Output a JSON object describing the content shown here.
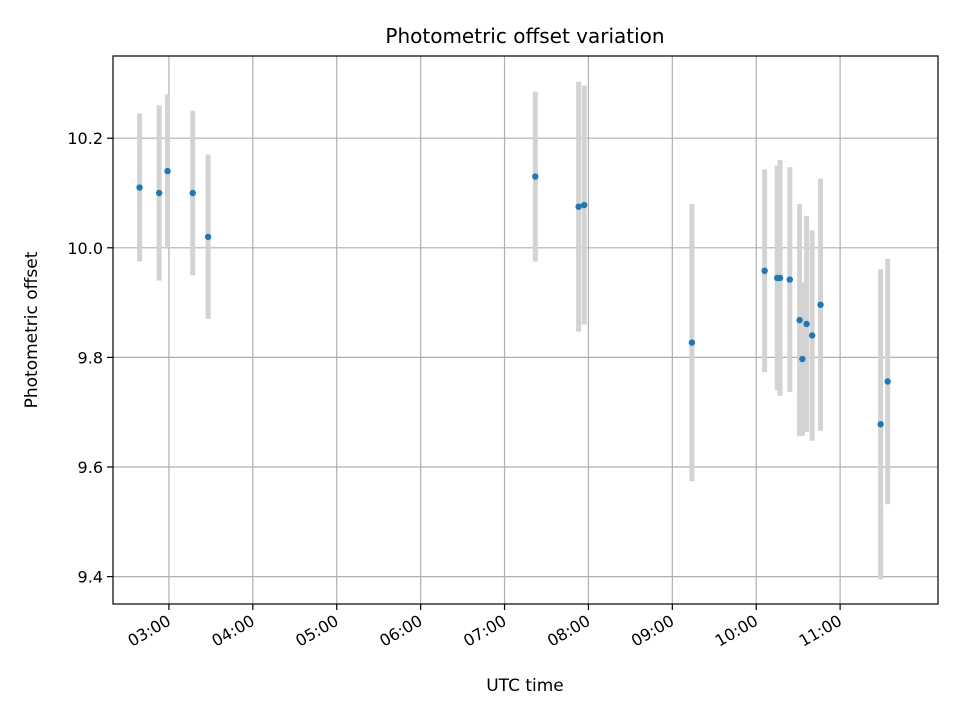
{
  "chart_data": {
    "type": "scatter",
    "title": "Photometric offset variation",
    "xlabel": "UTC time",
    "ylabel": "Photometric offset",
    "xlim": [
      "02:20",
      "12:10"
    ],
    "ylim": [
      9.35,
      10.35
    ],
    "x_ticks": [
      "03:00",
      "04:00",
      "05:00",
      "06:00",
      "07:00",
      "08:00",
      "09:00",
      "10:00",
      "11:00"
    ],
    "y_ticks": [
      9.4,
      9.6,
      9.8,
      10.0,
      10.2
    ],
    "grid": true,
    "colors": {
      "point": "#1f77b4",
      "errorbar": "#d3d3d3",
      "grid": "#b0b0b0",
      "axes": "#000000"
    },
    "points": [
      {
        "x": "02:39",
        "y": 10.11,
        "err": 0.135
      },
      {
        "x": "02:53",
        "y": 10.1,
        "err": 0.16
      },
      {
        "x": "02:59",
        "y": 10.14,
        "err": 0.14
      },
      {
        "x": "03:17",
        "y": 10.1,
        "err": 0.15
      },
      {
        "x": "03:28",
        "y": 10.02,
        "err": 0.15
      },
      {
        "x": "07:22",
        "y": 10.13,
        "err": 0.155
      },
      {
        "x": "07:53",
        "y": 10.075,
        "err": 0.228
      },
      {
        "x": "07:57",
        "y": 10.078,
        "err": 0.218
      },
      {
        "x": "09:14",
        "y": 9.827,
        "err": 0.253
      },
      {
        "x": "10:06",
        "y": 9.958,
        "err": 0.185
      },
      {
        "x": "10:15",
        "y": 9.945,
        "err": 0.205
      },
      {
        "x": "10:17",
        "y": 9.945,
        "err": 0.215
      },
      {
        "x": "10:24",
        "y": 9.942,
        "err": 0.205
      },
      {
        "x": "10:31",
        "y": 9.868,
        "err": 0.212
      },
      {
        "x": "10:33",
        "y": 9.797,
        "err": 0.14
      },
      {
        "x": "10:36",
        "y": 9.861,
        "err": 0.197
      },
      {
        "x": "10:40",
        "y": 9.84,
        "err": 0.192
      },
      {
        "x": "10:46",
        "y": 9.896,
        "err": 0.23
      },
      {
        "x": "11:29",
        "y": 9.678,
        "err": 0.283
      },
      {
        "x": "11:34",
        "y": 9.756,
        "err": 0.224
      }
    ]
  }
}
